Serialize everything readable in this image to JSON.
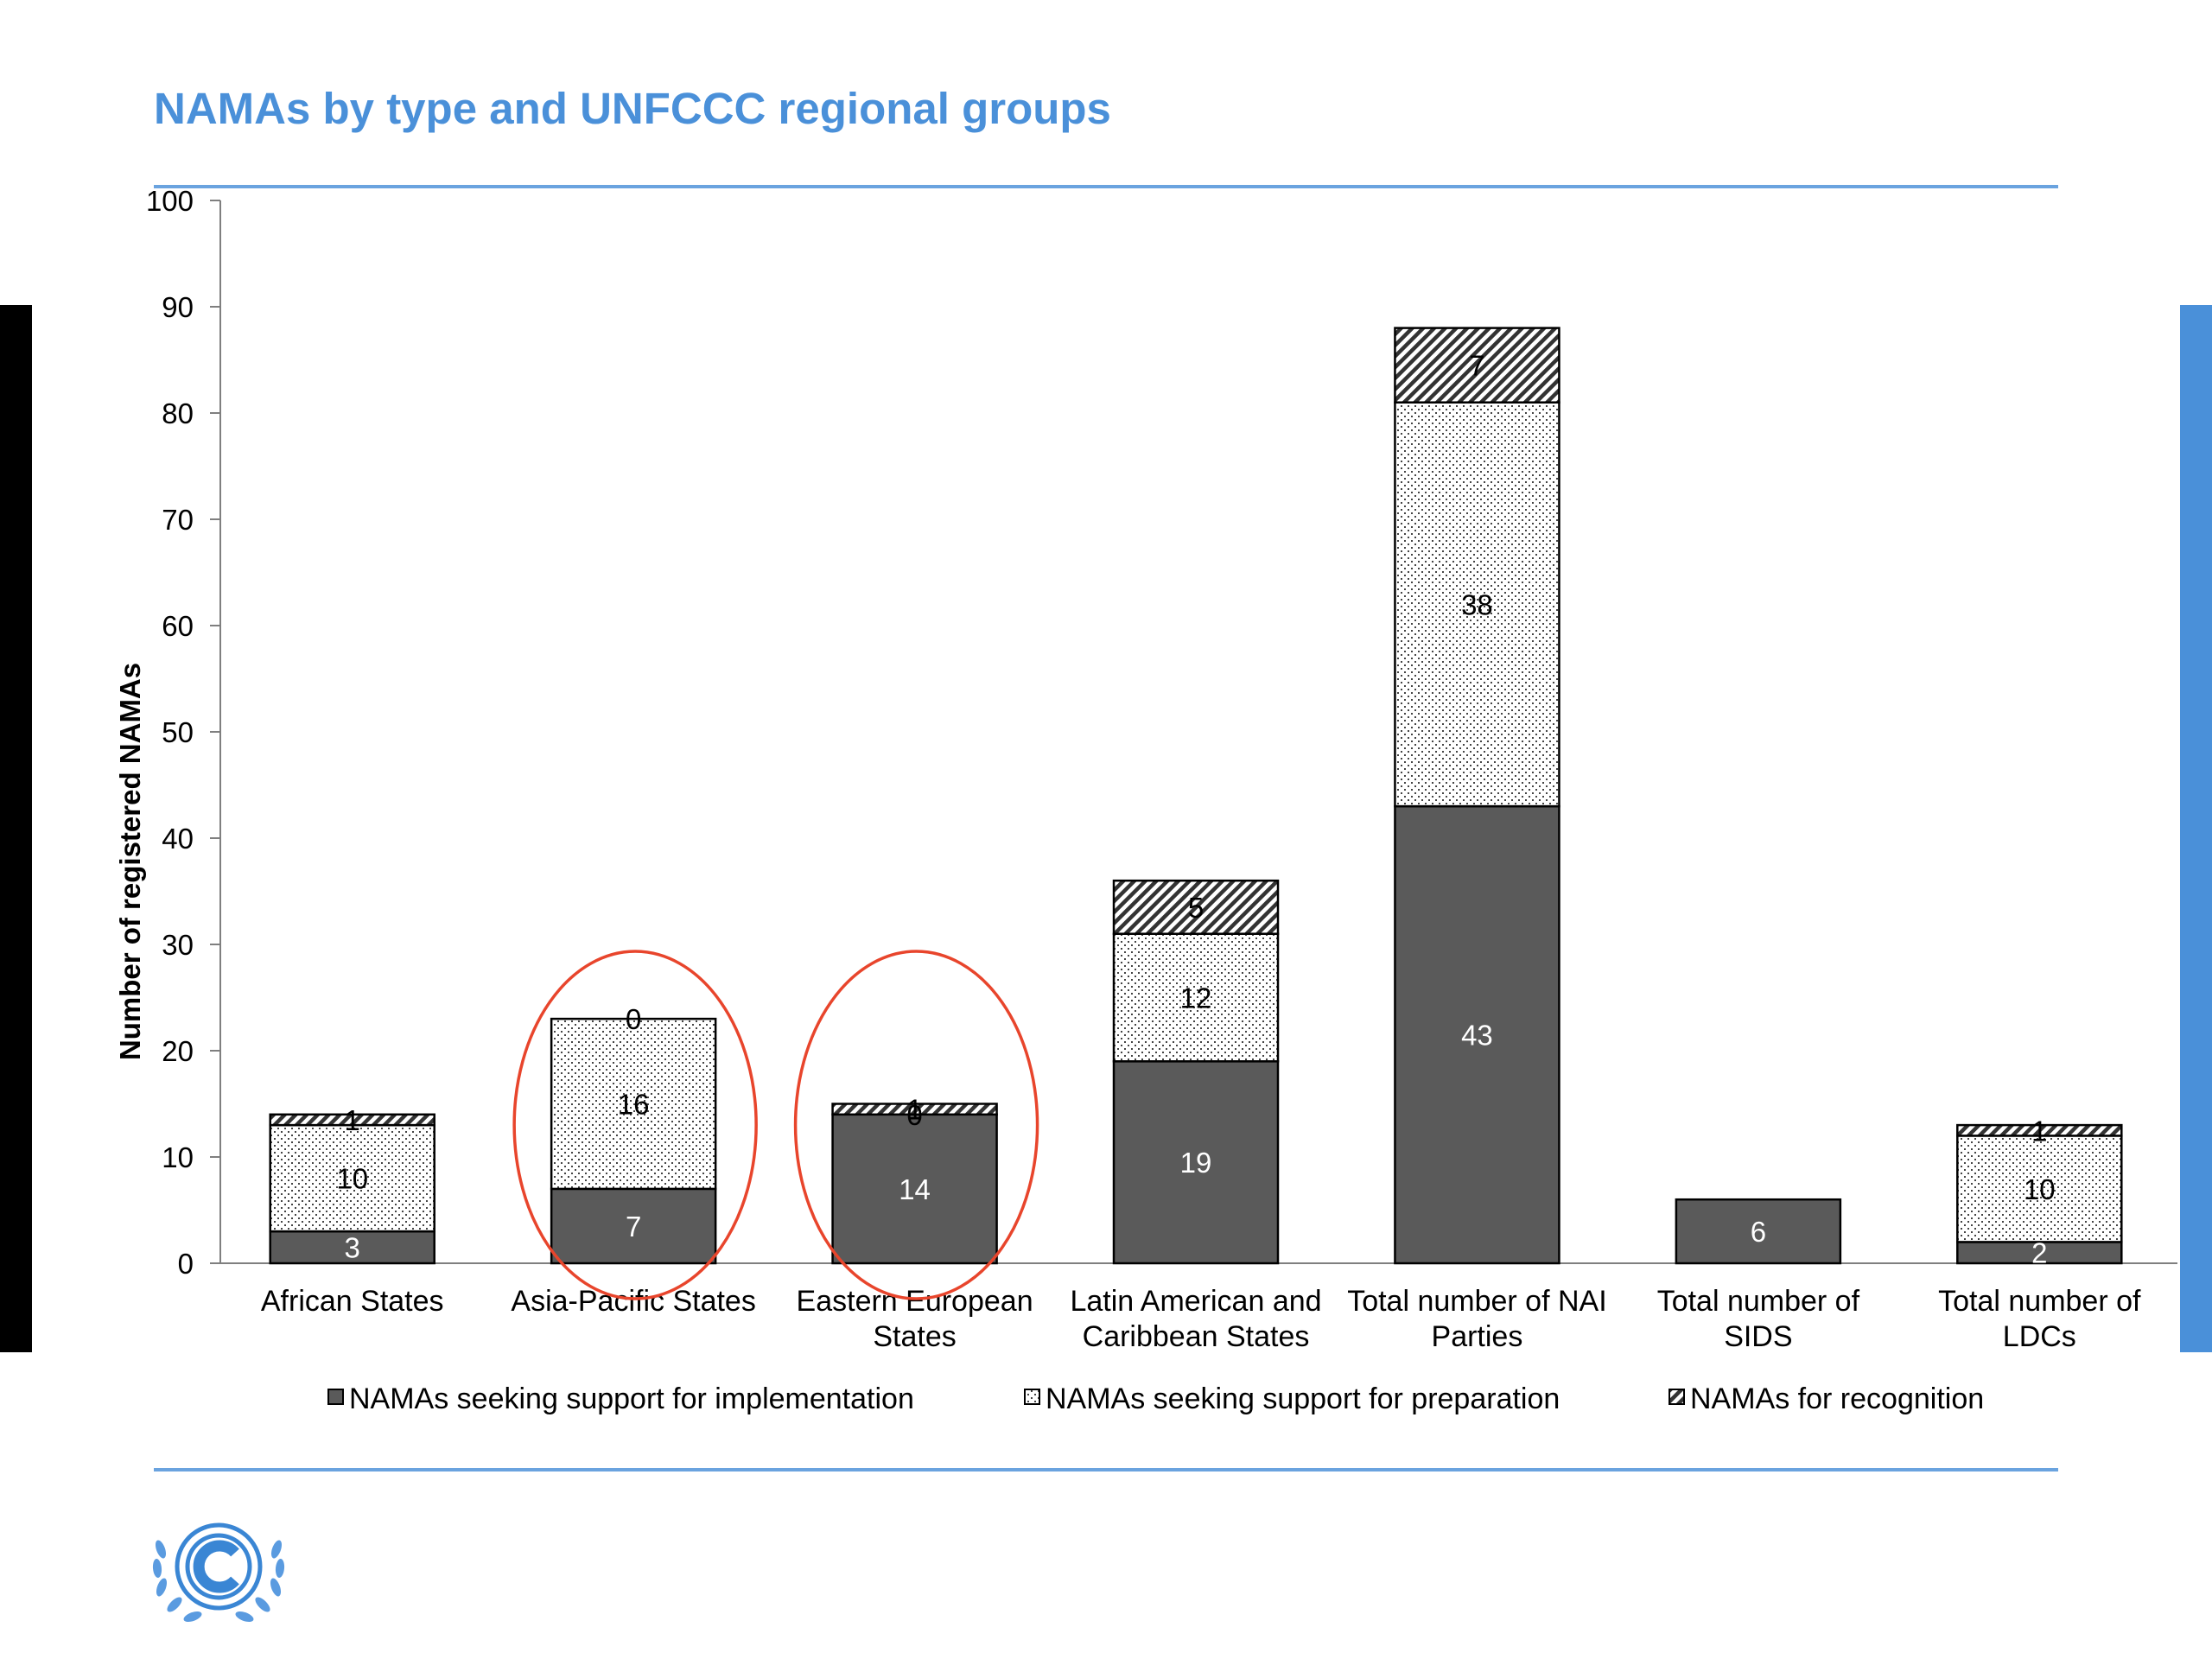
{
  "slide": {
    "title": "NAMAs by type and UNFCCC regional groups"
  },
  "colors": {
    "title": "#4a90d9",
    "rule": "#6aa3df",
    "left_bar": "#000000",
    "right_bar": "#4a90d9",
    "implementation": "#5a5a5a",
    "preparation_pattern": "dotted",
    "recognition_pattern": "diagonal-hatch",
    "annotation_circle": "#e8452c"
  },
  "logo": {
    "icon": "unfccc-emblem-icon"
  },
  "chart_data": {
    "type": "bar",
    "stacked": true,
    "title": "",
    "ylabel": "Number of registered NAMAs",
    "xlabel": "",
    "ylim": [
      0,
      100
    ],
    "yticks": [
      0,
      10,
      20,
      30,
      40,
      50,
      60,
      70,
      80,
      90,
      100
    ],
    "categories": [
      "African States",
      "Asia-Pacific States",
      "Eastern European States",
      "Latin American and Caribbean States",
      "Total number of NAI Parties",
      "Total number of SIDS",
      "Total number of LDCs"
    ],
    "category_lines": [
      [
        "African States"
      ],
      [
        "Asia-Pacific States"
      ],
      [
        "Eastern European",
        "States"
      ],
      [
        "Latin American and",
        "Caribbean States"
      ],
      [
        "Total number of NAI",
        "Parties"
      ],
      [
        "Total number of",
        "SIDS"
      ],
      [
        "Total number of",
        "LDCs"
      ]
    ],
    "series": [
      {
        "name": "NAMAs seeking support for implementation",
        "values": [
          3,
          7,
          14,
          19,
          43,
          6,
          2
        ]
      },
      {
        "name": "NAMAs seeking support for preparation",
        "values": [
          10,
          16,
          0,
          12,
          38,
          null,
          10
        ]
      },
      {
        "name": "NAMAs for recognition",
        "values": [
          1,
          0,
          1,
          5,
          7,
          null,
          1
        ]
      }
    ],
    "data_labels": [
      [
        "3",
        "10",
        "1"
      ],
      [
        "7",
        "16",
        "0"
      ],
      [
        "14",
        "0",
        "1"
      ],
      [
        "19",
        "12",
        "5"
      ],
      [
        "43",
        "38",
        "7"
      ],
      [
        "6",
        "",
        ""
      ],
      [
        "2",
        "10",
        "1"
      ]
    ],
    "legend_position": "bottom",
    "grid": false,
    "highlighted_categories": [
      "Asia-Pacific States",
      "Eastern European States"
    ]
  }
}
